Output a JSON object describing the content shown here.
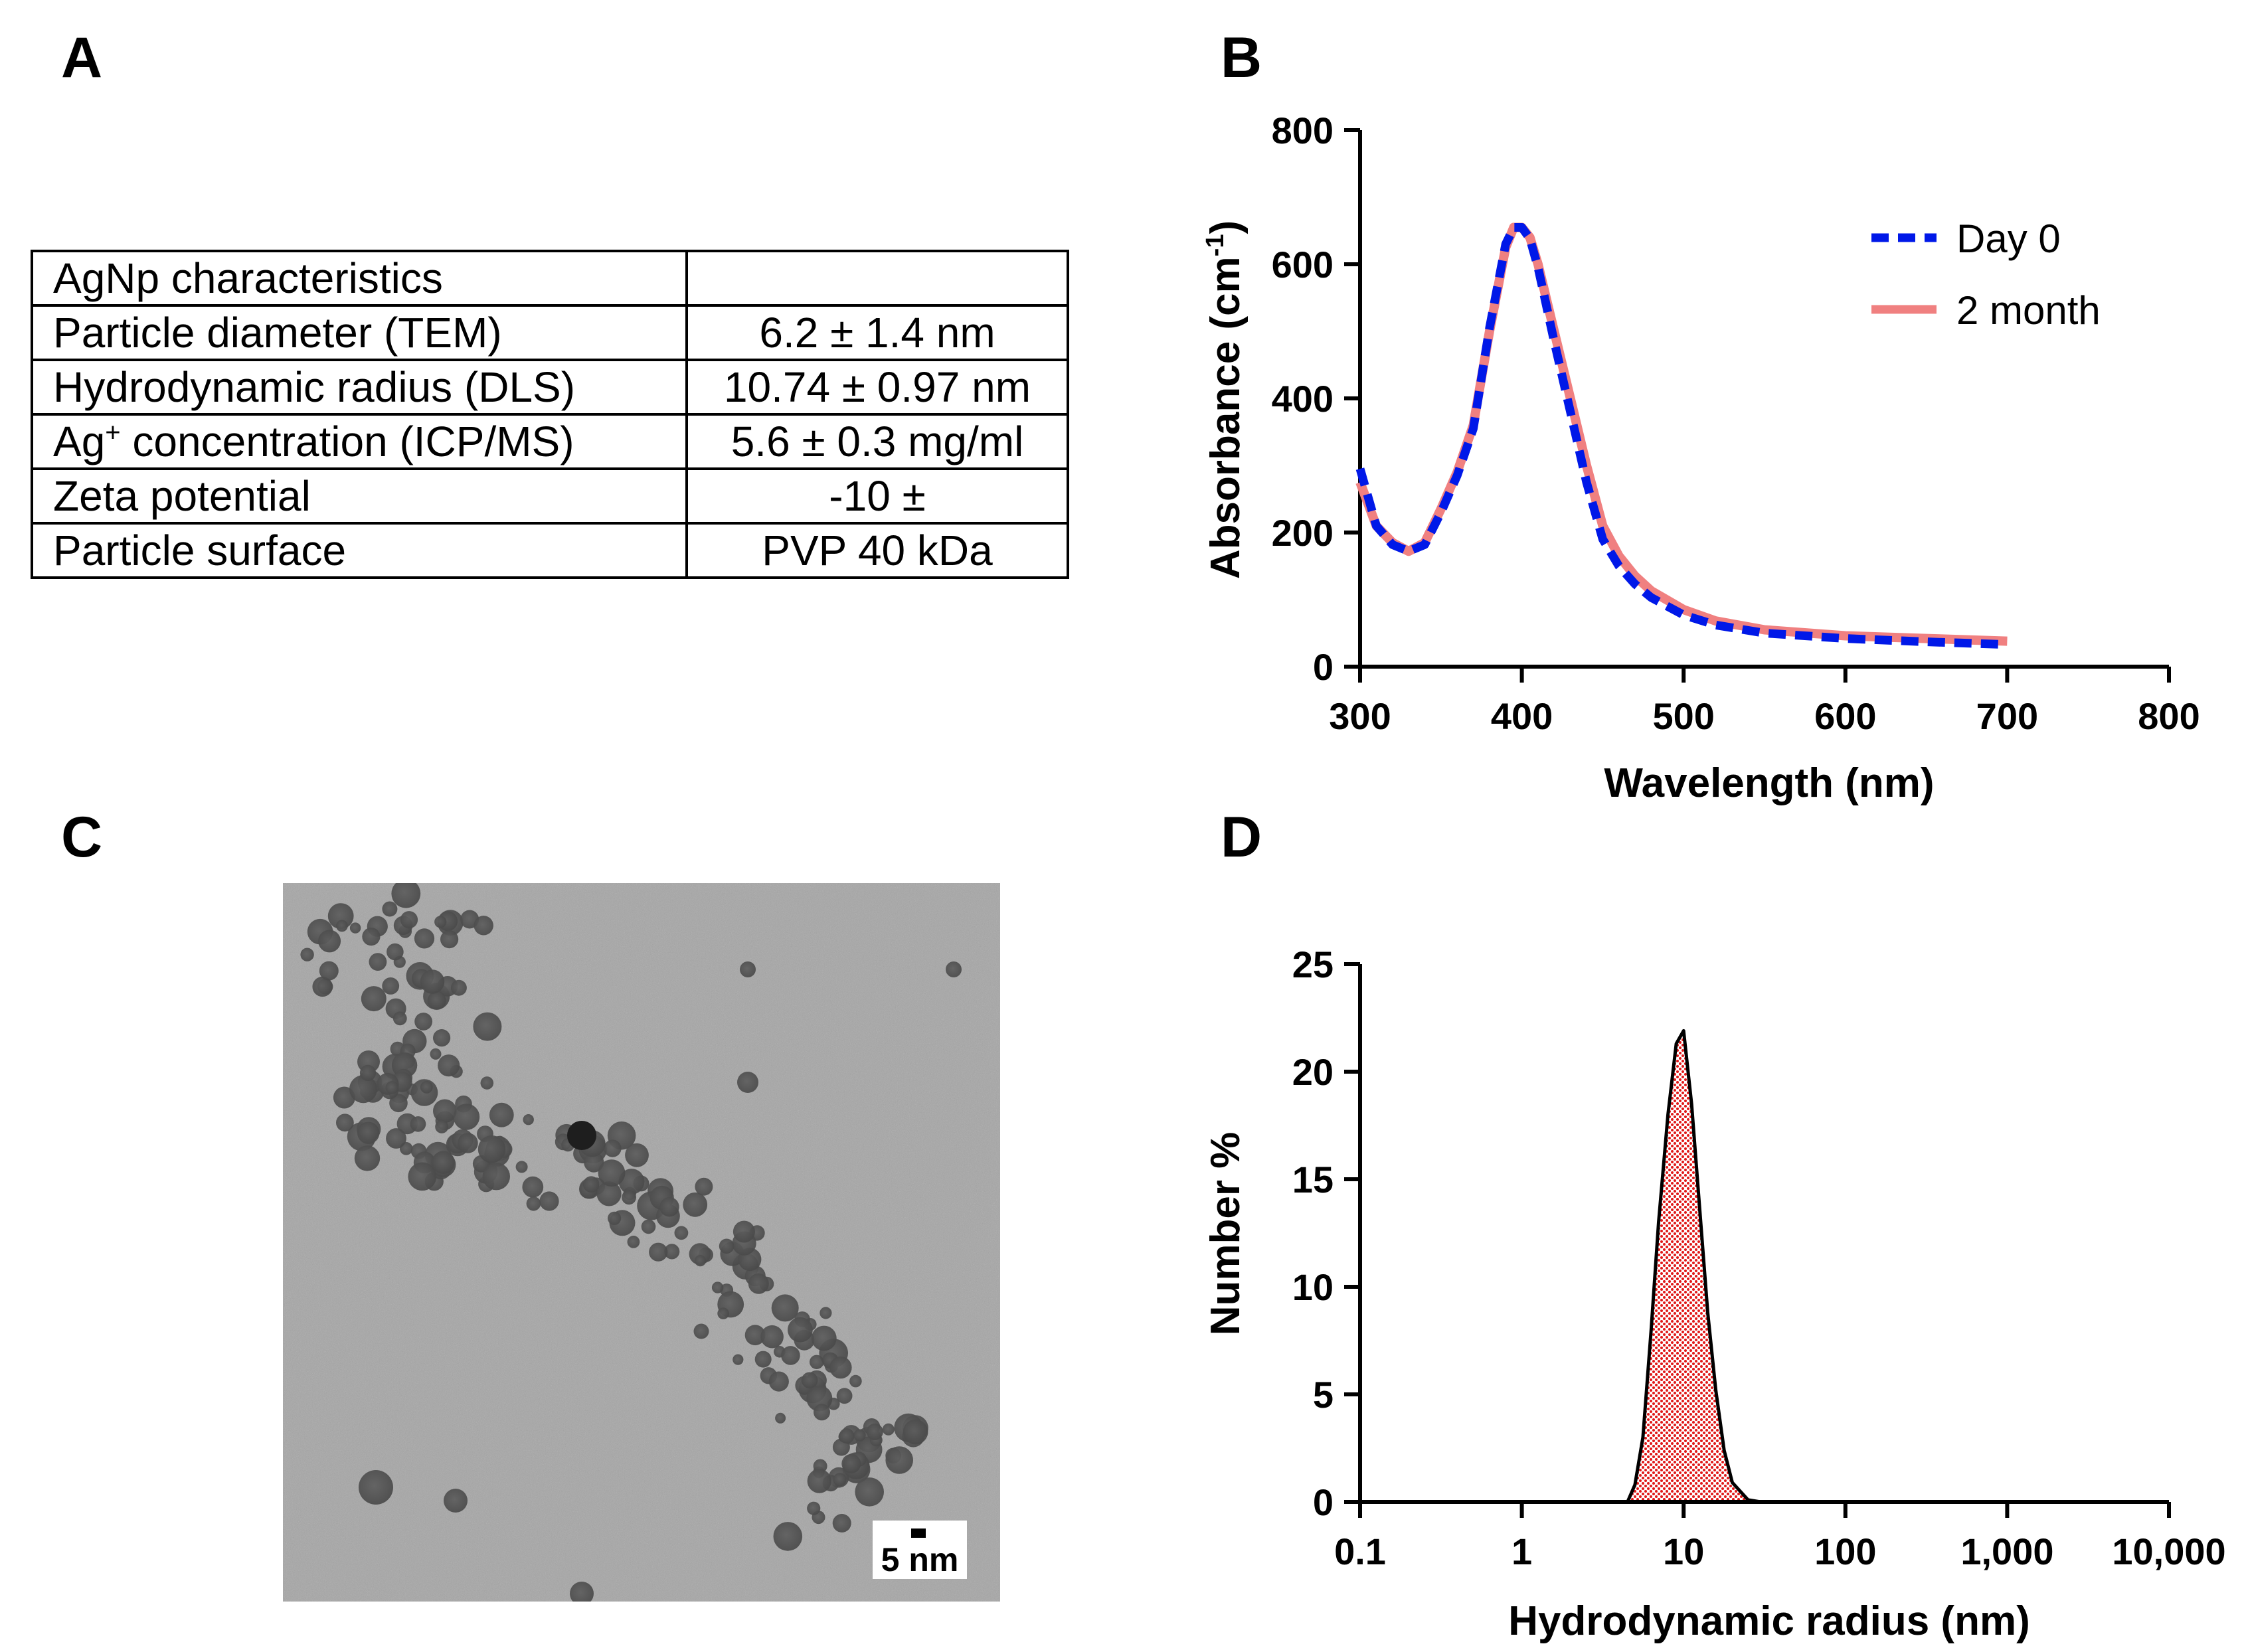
{
  "panels": {
    "a": "A",
    "b": "B",
    "c": "C",
    "d": "D"
  },
  "table": {
    "header": {
      "label": "AgNp characteristics",
      "value": ""
    },
    "rows": [
      {
        "label": "Particle diameter (TEM)",
        "value": "6.2 ± 1.4 nm"
      },
      {
        "label": "Hydrodynamic radius (DLS)",
        "value": "10.74 ± 0.97 nm"
      },
      {
        "label_prefix": "Ag",
        "label_sup": "+",
        "label_suffix": " concentration (ICP/MS)",
        "value": "5.6 ± 0.3 mg/ml"
      },
      {
        "label": "Zeta potential",
        "value": "-10 ±"
      },
      {
        "label": "Particle surface",
        "value": "PVP 40 kDa"
      }
    ]
  },
  "tem": {
    "scale_bar_label": "5 nm"
  },
  "chart_data": [
    {
      "id": "B",
      "type": "line",
      "xlabel": "Wavelength (nm)",
      "ylabel": "Absorbance (cm-1)",
      "ylabel_main": "Absorbance (cm",
      "ylabel_sup": "-1",
      "ylabel_end": ")",
      "xlim": [
        300,
        800
      ],
      "ylim": [
        0,
        800
      ],
      "xticks": [
        300,
        400,
        500,
        600,
        700,
        800
      ],
      "yticks": [
        0,
        200,
        400,
        600,
        800
      ],
      "legend_position": "top-right",
      "series": [
        {
          "name": "2 month",
          "color": "#f08080",
          "style": "solid",
          "x": [
            300,
            310,
            320,
            330,
            340,
            350,
            360,
            370,
            380,
            390,
            395,
            400,
            405,
            410,
            420,
            430,
            440,
            450,
            460,
            470,
            480,
            500,
            520,
            550,
            600,
            650,
            700
          ],
          "y": [
            275,
            210,
            185,
            172,
            185,
            235,
            290,
            360,
            500,
            625,
            655,
            655,
            640,
            600,
            500,
            400,
            300,
            210,
            165,
            135,
            113,
            85,
            68,
            55,
            46,
            42,
            38
          ]
        },
        {
          "name": "Day 0",
          "color": "#0018e8",
          "style": "dashed",
          "x": [
            300,
            310,
            320,
            330,
            340,
            350,
            360,
            370,
            380,
            390,
            395,
            400,
            405,
            410,
            420,
            430,
            440,
            450,
            460,
            470,
            480,
            500,
            520,
            550,
            600,
            650,
            700
          ],
          "y": [
            295,
            210,
            182,
            172,
            182,
            230,
            285,
            355,
            505,
            630,
            655,
            655,
            638,
            595,
            485,
            380,
            275,
            190,
            150,
            123,
            103,
            77,
            62,
            50,
            42,
            37,
            33
          ]
        }
      ]
    },
    {
      "id": "D",
      "type": "area",
      "xscale": "log",
      "xlabel": "Hydrodynamic radius (nm)",
      "ylabel": "Number %",
      "xlim": [
        0.1,
        10000
      ],
      "ylim": [
        0,
        25
      ],
      "xticks": [
        0.1,
        1,
        10,
        100,
        1000,
        10000
      ],
      "xtick_labels": [
        "0.1",
        "1",
        "10",
        "100",
        "1,000",
        "10,000"
      ],
      "yticks": [
        0,
        5,
        10,
        15,
        20,
        25
      ],
      "series": [
        {
          "name": "Number %",
          "color": "#e01818",
          "x": [
            0.1,
            4.5,
            5.0,
            5.6,
            6.3,
            7.0,
            8.0,
            9.0,
            10.0,
            11.2,
            12.6,
            14.1,
            15.8,
            17.8,
            20.0,
            25.0,
            30.0,
            10000
          ],
          "y": [
            0,
            0,
            0.8,
            3.0,
            8.0,
            13.0,
            18.0,
            21.3,
            21.9,
            18.5,
            13.5,
            8.8,
            5.2,
            2.4,
            0.9,
            0.1,
            0,
            0
          ]
        }
      ]
    }
  ]
}
